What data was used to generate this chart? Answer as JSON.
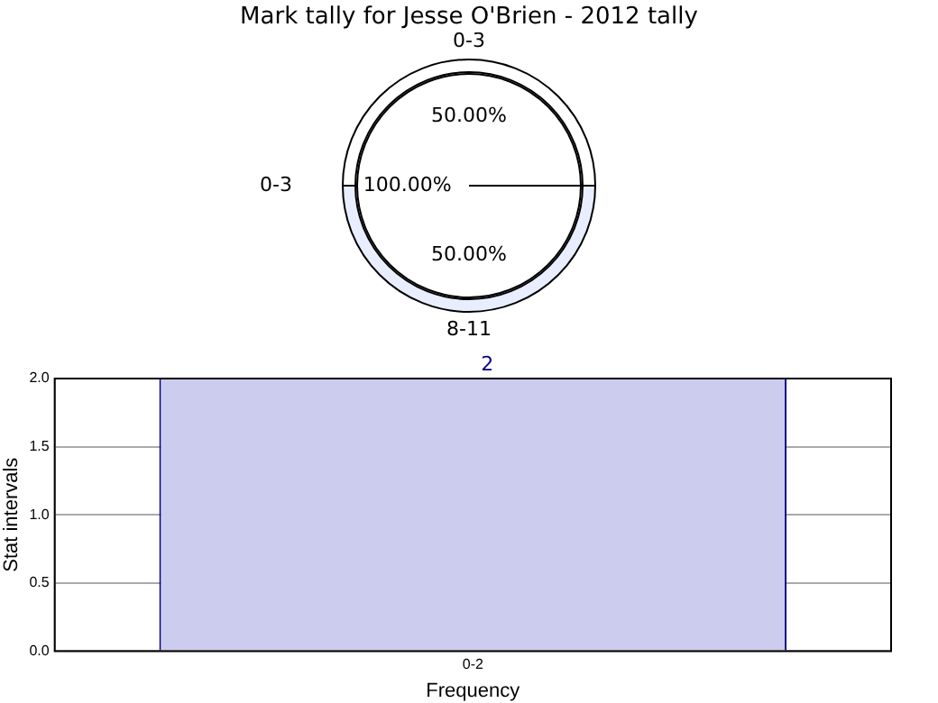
{
  "chart_data": [
    {
      "type": "pie",
      "title": "Mark tally for Jesse O'Brien - 2012 tally",
      "categories": [
        "0-3"
      ],
      "values": [
        100
      ],
      "colors": [
        "#ffffff"
      ],
      "value_labels": [
        "100.00%"
      ]
    },
    {
      "type": "donut",
      "categories": [
        "0-3",
        "8-11"
      ],
      "values": [
        50,
        50
      ],
      "colors": [
        "#ffffff",
        "#e8eeff"
      ],
      "value_labels": [
        "50.00%",
        "50.00%"
      ]
    },
    {
      "type": "bar",
      "categories": [
        "0-2"
      ],
      "values": [
        2
      ],
      "color": "#ccccee",
      "ylim": [
        0,
        2
      ],
      "yticks": [
        {
          "value": 0,
          "label": "0.0"
        },
        {
          "value": 0.5,
          "label": "0.5"
        },
        {
          "value": 1,
          "label": "1.0"
        },
        {
          "value": 1.5,
          "label": "1.5"
        },
        {
          "value": 2,
          "label": "2.0"
        }
      ],
      "grid": true,
      "xlabel": "Frequency",
      "ylabel": "Stat intervals",
      "data_labels": true
    }
  ]
}
